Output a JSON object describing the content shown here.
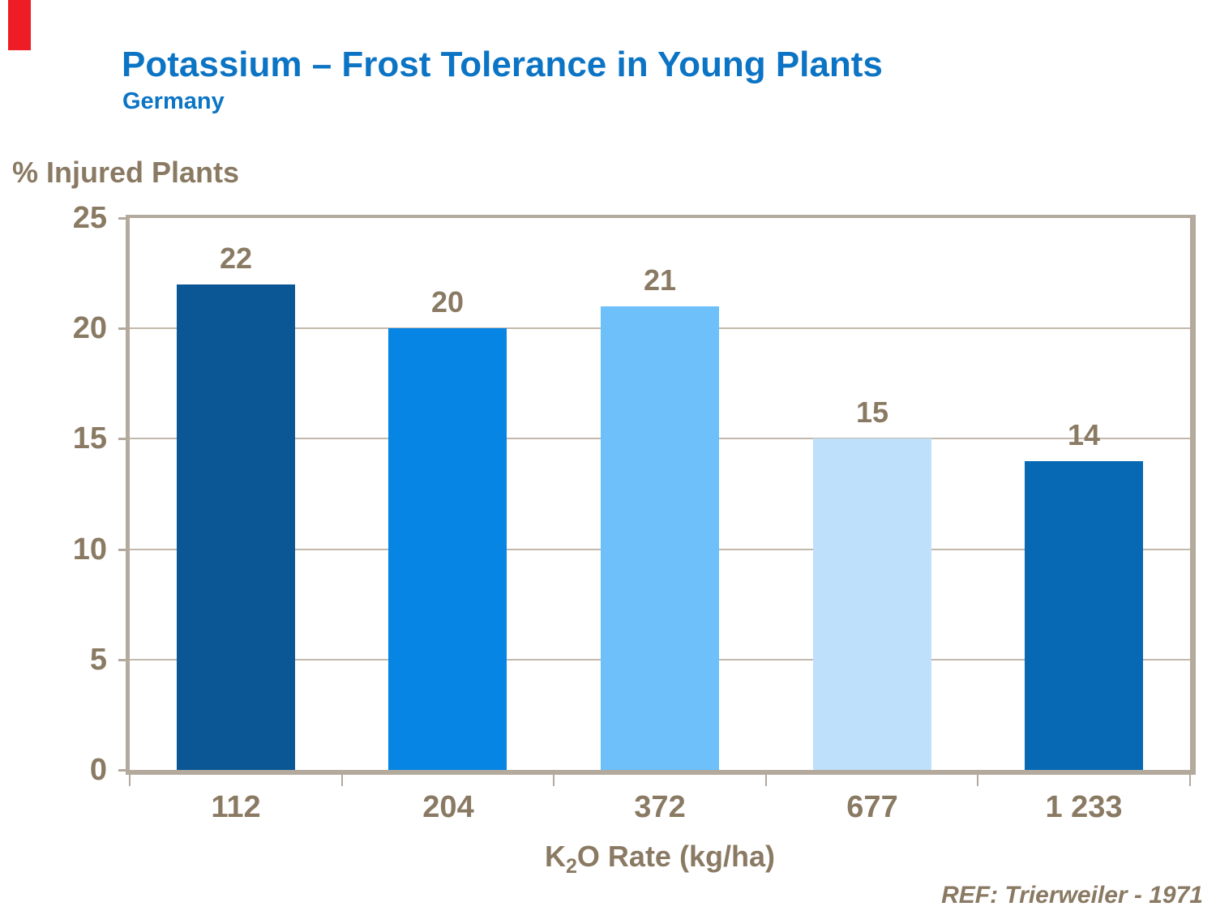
{
  "page": {
    "title": "Potassium – Frost Tolerance in Young Plants",
    "subtitle": "Germany",
    "reference": "REF: Trierweiler - 1971"
  },
  "chart_data": {
    "type": "bar",
    "title": "Potassium – Frost Tolerance in Young Plants",
    "subtitle": "Germany",
    "categories": [
      "112",
      "204",
      "372",
      "677",
      "1 233"
    ],
    "values": [
      22,
      20,
      21,
      15,
      14
    ],
    "ylabel": "% Injured Plants",
    "xlabel": "K2O Rate (kg/ha)",
    "xlabel_parts": {
      "pre": "K",
      "sub": "2",
      "post": "O Rate (kg/ha)"
    },
    "ylim": [
      0,
      25
    ],
    "yticks": [
      0,
      5,
      10,
      15,
      20,
      25
    ],
    "grid": true,
    "legend": "none",
    "annotation": "REF: Trierweiler - 1971"
  },
  "colors": {
    "title_blue": "#0C74C4",
    "axis_text": "#8A7A63",
    "grid_line": "#C2B9AC",
    "frame": "#B3A99C",
    "red_marker": "#EE1C25",
    "bars": [
      "#0B5795",
      "#0685E5",
      "#6DC0FA",
      "#BEE0FA",
      "#0769B3"
    ]
  }
}
